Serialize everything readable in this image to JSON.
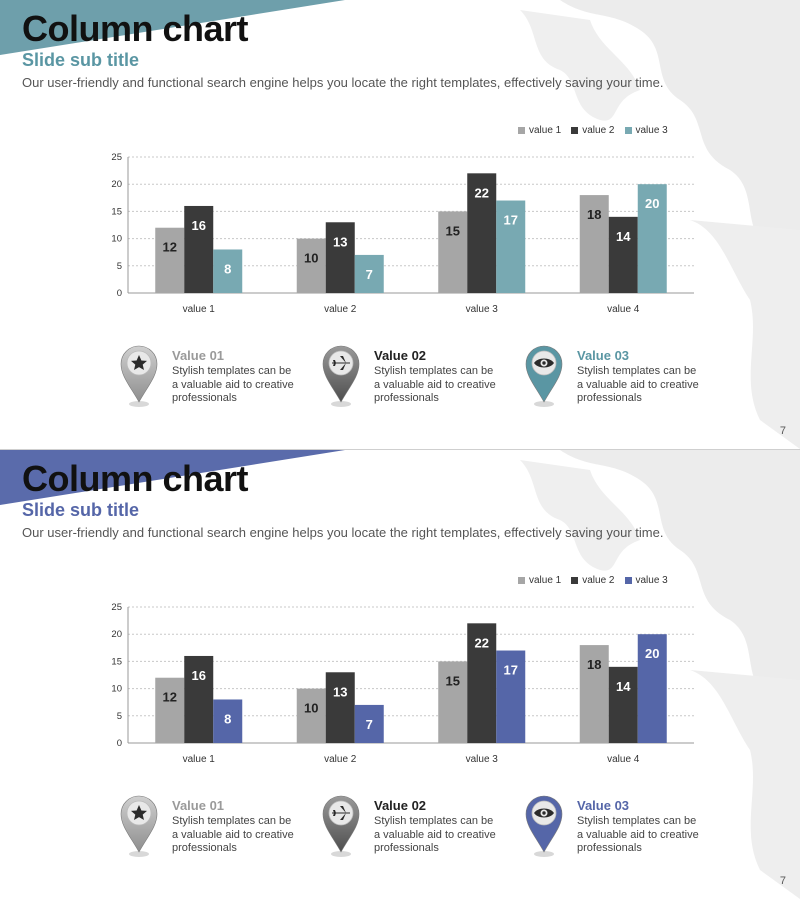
{
  "slides": [
    {
      "title": "Column chart",
      "subtitle": "Slide sub title",
      "description": "Our user-friendly and functional search engine helps you locate the right templates, effectively saving your time.",
      "accent_color": "#5a96a3",
      "band_color": "#6e9fab",
      "page_number": "7",
      "features": [
        {
          "icon": "star-icon",
          "title": "Value 01",
          "title_color": "#9a9a9a",
          "text": "Stylish templates can be a valuable aid to creative professionals",
          "pin_color": "gray"
        },
        {
          "icon": "airplane-icon",
          "title": "Value 02",
          "title_color": "#222222",
          "text": "Stylish templates can be a valuable aid to creative professionals",
          "pin_color": "dark"
        },
        {
          "icon": "eye-icon",
          "title": "Value 03",
          "title_color": "#5a96a3",
          "text": "Stylish templates can be a valuable aid to creative professionals",
          "pin_color": "accent"
        }
      ],
      "chart_data": {
        "type": "bar",
        "categories": [
          "value 1",
          "value 2",
          "value 3",
          "value 4"
        ],
        "series": [
          {
            "name": "value 1",
            "values": [
              12,
              10,
              15,
              18
            ],
            "color": "#a6a6a6"
          },
          {
            "name": "value 2",
            "values": [
              16,
              13,
              22,
              14
            ],
            "color": "#3a3a3a"
          },
          {
            "name": "value 3",
            "values": [
              8,
              7,
              17,
              20
            ],
            "color": "#78a9b2"
          }
        ],
        "ylim": [
          0,
          25
        ],
        "yticks": [
          0,
          5,
          10,
          15,
          20,
          25
        ],
        "grid": true,
        "legend": "top-right"
      }
    },
    {
      "title": "Column chart",
      "subtitle": "Slide sub title",
      "description": "Our user-friendly and functional search engine helps you locate the right templates, effectively saving your time.",
      "accent_color": "#5566a8",
      "band_color": "#5a6bab",
      "page_number": "7",
      "features": [
        {
          "icon": "star-icon",
          "title": "Value 01",
          "title_color": "#9a9a9a",
          "text": "Stylish templates can be a valuable aid to creative professionals",
          "pin_color": "gray"
        },
        {
          "icon": "airplane-icon",
          "title": "Value 02",
          "title_color": "#222222",
          "text": "Stylish templates can be a valuable aid to creative professionals",
          "pin_color": "dark"
        },
        {
          "icon": "eye-icon",
          "title": "Value 03",
          "title_color": "#5566a8",
          "text": "Stylish templates can be a valuable aid to creative professionals",
          "pin_color": "purple"
        }
      ],
      "chart_data": {
        "type": "bar",
        "categories": [
          "value 1",
          "value 2",
          "value 3",
          "value 4"
        ],
        "series": [
          {
            "name": "value 1",
            "values": [
              12,
              10,
              15,
              18
            ],
            "color": "#a6a6a6"
          },
          {
            "name": "value 2",
            "values": [
              16,
              13,
              22,
              14
            ],
            "color": "#3a3a3a"
          },
          {
            "name": "value 3",
            "values": [
              8,
              7,
              17,
              20
            ],
            "color": "#5566a8"
          }
        ],
        "ylim": [
          0,
          25
        ],
        "yticks": [
          0,
          5,
          10,
          15,
          20,
          25
        ],
        "grid": true,
        "legend": "top-right"
      }
    }
  ]
}
